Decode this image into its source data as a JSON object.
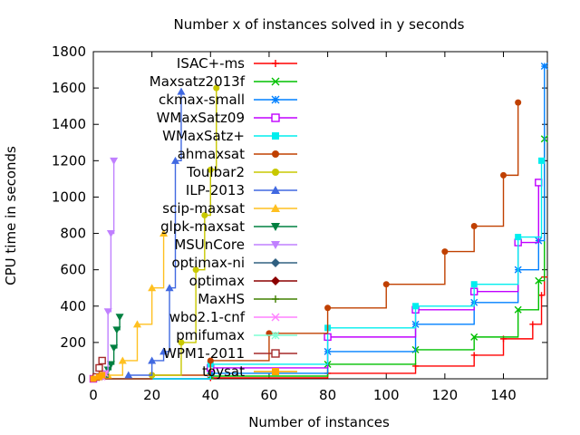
{
  "chart_data": {
    "type": "line",
    "title": "Number x of instances solved in y seconds",
    "xlabel": "Number of instances",
    "ylabel": "CPU time in seconds",
    "xlim": [
      0,
      155
    ],
    "ylim": [
      0,
      1800
    ],
    "xticks": [
      "0",
      "20",
      "40",
      "60",
      "80",
      "100",
      "120",
      "140"
    ],
    "yticks": [
      "0",
      "200",
      "400",
      "600",
      "800",
      "1000",
      "1200",
      "1400",
      "1600",
      "1800"
    ],
    "legend_position": "top-right, inside",
    "series": [
      {
        "name": "ISAC+-ms",
        "color": "#ff0000",
        "marker": "plus",
        "points": [
          [
            0,
            0
          ],
          [
            40,
            5
          ],
          [
            80,
            30
          ],
          [
            110,
            70
          ],
          [
            130,
            130
          ],
          [
            140,
            220
          ],
          [
            150,
            300
          ],
          [
            153,
            460
          ],
          [
            154,
            560
          ]
        ]
      },
      {
        "name": "Maxsatz2013f",
        "color": "#00c000",
        "marker": "x",
        "points": [
          [
            0,
            0
          ],
          [
            40,
            15
          ],
          [
            80,
            80
          ],
          [
            110,
            160
          ],
          [
            130,
            230
          ],
          [
            145,
            380
          ],
          [
            152,
            540
          ],
          [
            154,
            1320
          ]
        ]
      },
      {
        "name": "ckmax-small",
        "color": "#0080ff",
        "marker": "star",
        "points": [
          [
            0,
            0
          ],
          [
            40,
            30
          ],
          [
            80,
            150
          ],
          [
            110,
            300
          ],
          [
            130,
            420
          ],
          [
            145,
            600
          ],
          [
            152,
            760
          ],
          [
            154,
            1720
          ]
        ]
      },
      {
        "name": "WMaxSatz09",
        "color": "#c000ff",
        "marker": "square",
        "points": [
          [
            0,
            0
          ],
          [
            40,
            60
          ],
          [
            80,
            230
          ],
          [
            110,
            380
          ],
          [
            130,
            480
          ],
          [
            145,
            750
          ],
          [
            152,
            1080
          ]
        ]
      },
      {
        "name": "WMaxSatz+",
        "color": "#00eeee",
        "marker": "filled-square",
        "points": [
          [
            0,
            0
          ],
          [
            40,
            80
          ],
          [
            80,
            280
          ],
          [
            110,
            400
          ],
          [
            130,
            520
          ],
          [
            145,
            780
          ],
          [
            153,
            1200
          ]
        ]
      },
      {
        "name": "ahmaxsat",
        "color": "#c04000",
        "marker": "filled-circle",
        "points": [
          [
            0,
            0
          ],
          [
            20,
            20
          ],
          [
            40,
            100
          ],
          [
            60,
            250
          ],
          [
            80,
            390
          ],
          [
            100,
            520
          ],
          [
            120,
            700
          ],
          [
            130,
            840
          ],
          [
            140,
            1120
          ],
          [
            145,
            1520
          ]
        ]
      },
      {
        "name": "Toulbar2",
        "color": "#c8c800",
        "marker": "filled-circle",
        "points": [
          [
            20,
            20
          ],
          [
            30,
            200
          ],
          [
            35,
            600
          ],
          [
            38,
            900
          ],
          [
            40,
            1150
          ],
          [
            42,
            1600
          ]
        ]
      },
      {
        "name": "ILP-2013",
        "color": "#4169e1",
        "marker": "filled-triangle",
        "points": [
          [
            12,
            20
          ],
          [
            20,
            100
          ],
          [
            24,
            150
          ],
          [
            26,
            500
          ],
          [
            28,
            1200
          ],
          [
            30,
            1580
          ]
        ]
      },
      {
        "name": "scip-maxsat",
        "color": "#ffc020",
        "marker": "filled-triangle",
        "points": [
          [
            5,
            20
          ],
          [
            10,
            100
          ],
          [
            15,
            300
          ],
          [
            20,
            500
          ],
          [
            24,
            800
          ]
        ]
      },
      {
        "name": "glpk-maxsat",
        "color": "#008040",
        "marker": "filled-down-triangle",
        "points": [
          [
            2,
            10
          ],
          [
            5,
            50
          ],
          [
            6,
            80
          ],
          [
            7,
            170
          ],
          [
            8,
            270
          ],
          [
            9,
            340
          ]
        ]
      },
      {
        "name": "MSUnCore",
        "color": "#c080ff",
        "marker": "filled-down-triangle",
        "points": [
          [
            3,
            10
          ],
          [
            4,
            30
          ],
          [
            5,
            370
          ],
          [
            6,
            800
          ],
          [
            7,
            1200
          ]
        ]
      },
      {
        "name": "optimax-ni",
        "color": "#306080",
        "marker": "filled-diamond",
        "points": []
      },
      {
        "name": "optimax",
        "color": "#8b0000",
        "marker": "filled-diamond",
        "points": []
      },
      {
        "name": "MaxHS",
        "color": "#408000",
        "marker": "plus",
        "points": []
      },
      {
        "name": "wbo2.1-cnf",
        "color": "#ff80ff",
        "marker": "x",
        "points": [
          [
            3,
            10
          ],
          [
            4,
            30
          ]
        ]
      },
      {
        "name": "pmifumax",
        "color": "#7fffd4",
        "marker": "star",
        "points": []
      },
      {
        "name": "WPM1-2011",
        "color": "#a52a2a",
        "marker": "square",
        "points": [
          [
            1,
            10
          ],
          [
            2,
            60
          ],
          [
            3,
            100
          ]
        ]
      },
      {
        "name": "toysat",
        "color": "#ffa500",
        "marker": "filled-square",
        "points": [
          [
            0,
            0
          ],
          [
            2,
            10
          ],
          [
            3,
            20
          ]
        ]
      }
    ]
  }
}
